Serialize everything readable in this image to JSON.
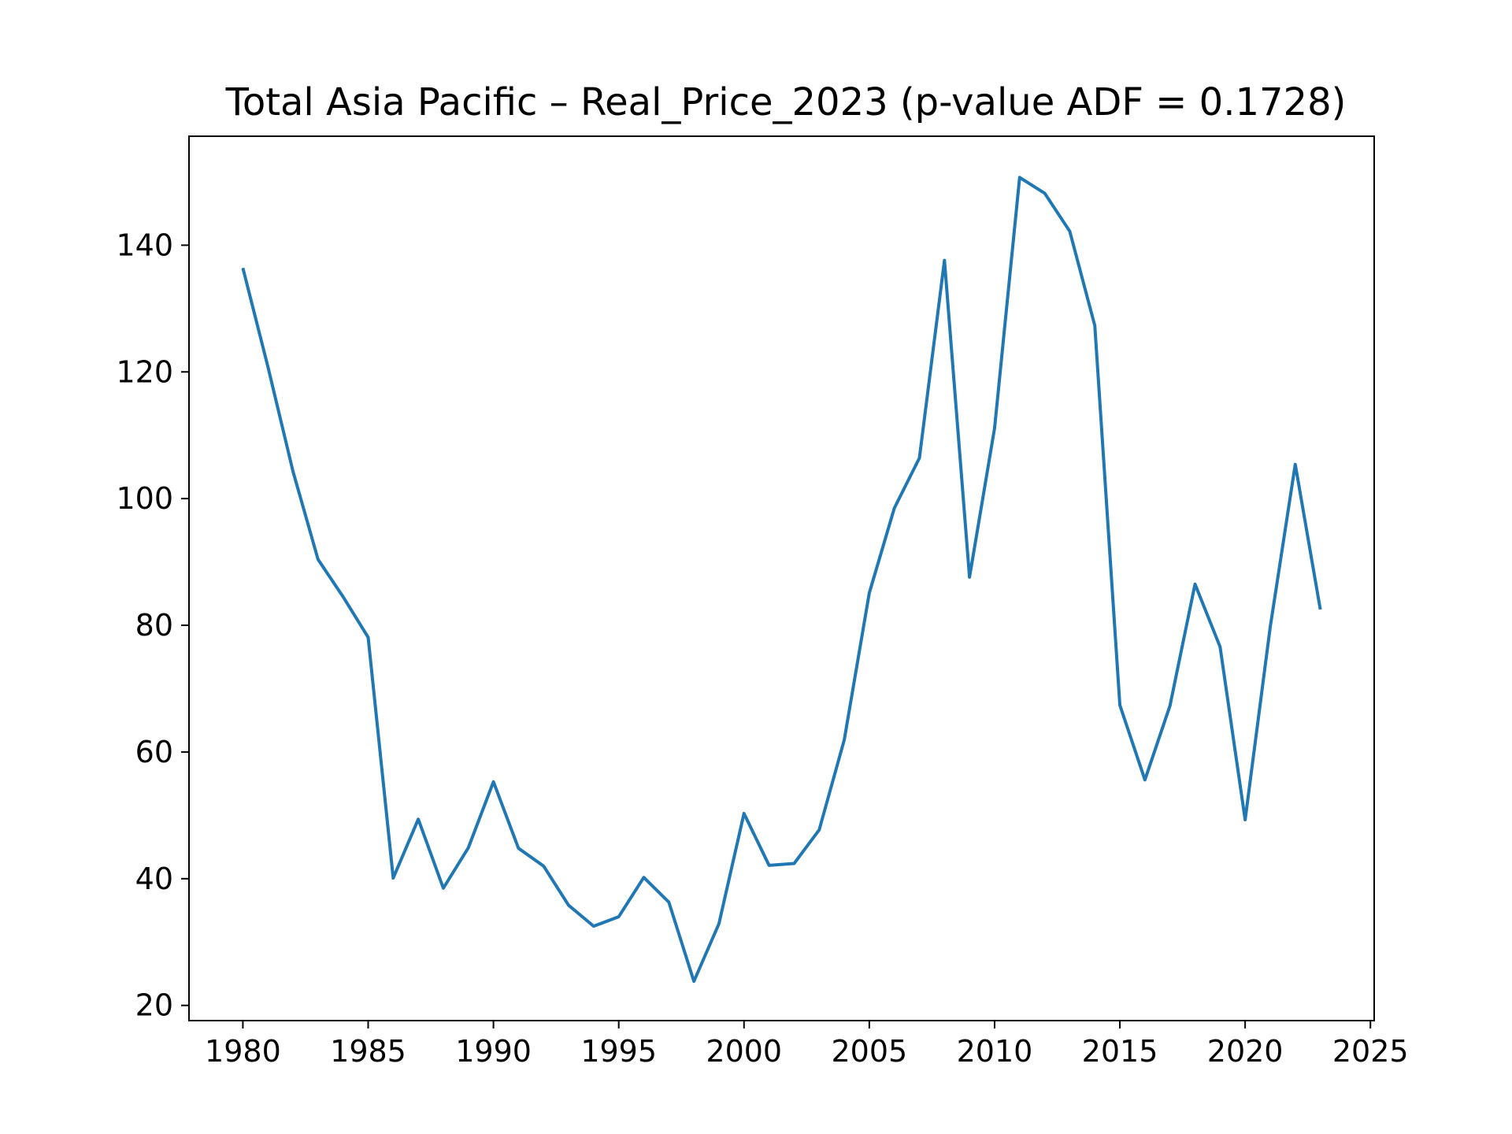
{
  "chart_data": {
    "type": "line",
    "title": "Total Asia Pacific – Real_Price_2023 (p-value ADF = 0.1728)",
    "xlabel": "",
    "ylabel": "",
    "xlim": [
      1977.85,
      2025.15
    ],
    "ylim": [
      17.6,
      157.2
    ],
    "x_ticks": [
      1980,
      1985,
      1990,
      1995,
      2000,
      2005,
      2010,
      2015,
      2020,
      2025
    ],
    "y_ticks": [
      20,
      40,
      60,
      80,
      100,
      120,
      140
    ],
    "grid": false,
    "legend": "none",
    "line_color": "#1f77b4",
    "series": [
      {
        "x": [
          1980,
          1981,
          1982,
          1983,
          1984,
          1985,
          1986,
          1987,
          1988,
          1989,
          1990,
          1991,
          1992,
          1993,
          1994,
          1995,
          1996,
          1997,
          1998,
          1999,
          2000,
          2001,
          2002,
          2003,
          2004,
          2005,
          2006,
          2007,
          2008,
          2009,
          2010,
          2011,
          2012,
          2013,
          2014,
          2015,
          2016,
          2017,
          2018,
          2019,
          2020,
          2021,
          2022,
          2023
        ],
        "values": [
          136.4,
          120.8,
          104.3,
          90.4,
          84.5,
          78.1,
          40.1,
          49.4,
          38.5,
          44.9,
          55.3,
          44.8,
          42.0,
          35.8,
          32.5,
          34.0,
          40.2,
          36.3,
          23.8,
          32.9,
          50.3,
          42.1,
          42.4,
          47.7,
          61.9,
          85.1,
          98.5,
          106.4,
          137.6,
          87.6,
          111.1,
          150.7,
          148.2,
          142.2,
          127.3,
          67.4,
          55.6,
          67.3,
          86.5,
          76.6,
          49.3,
          79.7,
          105.4,
          82.5
        ]
      }
    ]
  }
}
